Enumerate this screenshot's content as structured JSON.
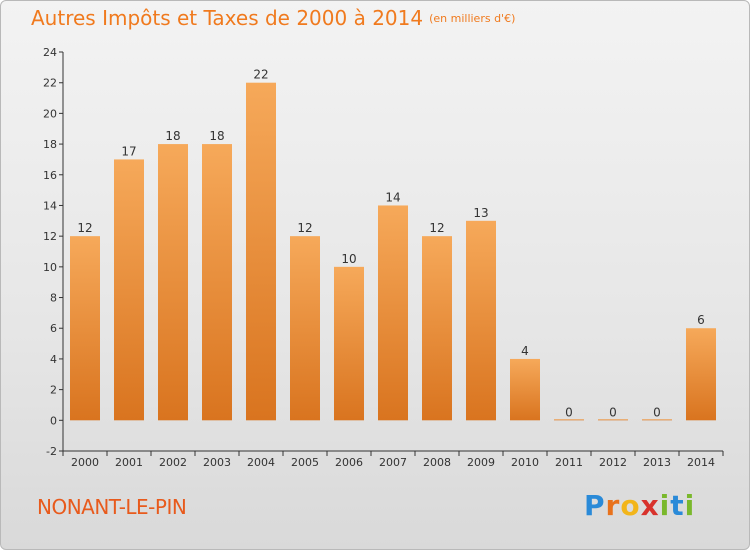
{
  "title": "Autres Impôts et Taxes de 2000 à 2014",
  "unit": "(en milliers d'€)",
  "commune": "NONANT-LE-PIN",
  "brand": {
    "letters": [
      "P",
      "r",
      "o",
      "x",
      "i",
      "t",
      "i"
    ],
    "colors": [
      "#2a8ad8",
      "#e8721c",
      "#f2b51a",
      "#d8322c",
      "#7ab82c",
      "#2a8ad8",
      "#7ab82c"
    ]
  },
  "colors": {
    "bar_top": "#f6a95a",
    "bar_bottom": "#d9741f",
    "title": "#f07a1e"
  },
  "chart_data": {
    "type": "bar",
    "categories": [
      "2000",
      "2001",
      "2002",
      "2003",
      "2004",
      "2005",
      "2006",
      "2007",
      "2008",
      "2009",
      "2010",
      "2011",
      "2012",
      "2013",
      "2014"
    ],
    "values": [
      12,
      17,
      18,
      18,
      22,
      12,
      10,
      14,
      12,
      13,
      4,
      0,
      0,
      0,
      6
    ],
    "title": "Autres Impôts et Taxes de 2000 à 2014",
    "xlabel": "",
    "ylabel": "",
    "ylim": [
      -2,
      24
    ],
    "yticks": [
      -2,
      0,
      2,
      4,
      6,
      8,
      10,
      12,
      14,
      16,
      18,
      20,
      22,
      24
    ],
    "grid": false,
    "legend": "none"
  }
}
